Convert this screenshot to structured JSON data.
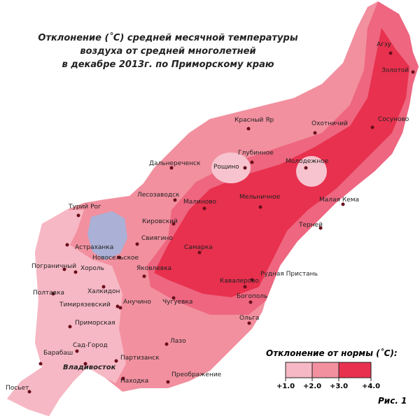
{
  "title": [
    "Отклонение (˚С) средней  месячной температуры",
    "воздуха  от средней многолетней",
    "в декабре 2013г. по Приморскому краю"
  ],
  "settlements": [
    "Агзу",
    "Золотой",
    "Сосуново",
    "Охотничий",
    "Красный Яр",
    "Глубинное",
    "Рощино",
    "Молодежное",
    "Дальнереченск",
    "Лесозаводск",
    "Малиново",
    "Мельничное",
    "Малая Кема",
    "Турий Рог",
    "Кировский",
    "Терней",
    "Свиягино",
    "Астраханка",
    "Новосельское",
    "Самарка",
    "Пограничный",
    "Хороль",
    "Яковлевка",
    "Рудная Пристань",
    "Кавалерово",
    "Халкидон",
    "Полтавка",
    "Анучино",
    "Чугуевка",
    "Богополь",
    "Тимирязевский",
    "Ольга",
    "Приморская",
    "Лазо",
    "Сад-Город",
    "Барабаш",
    "Партизанск",
    "Владивосток",
    "Находка",
    "Преображение",
    "Посьет"
  ],
  "legend": {
    "title": "Отклонение от нормы (˚С):",
    "labels": [
      "+1.0",
      "+2.0",
      "+3.0",
      "+4.0"
    ]
  },
  "figure_label": "Рис. 1"
}
